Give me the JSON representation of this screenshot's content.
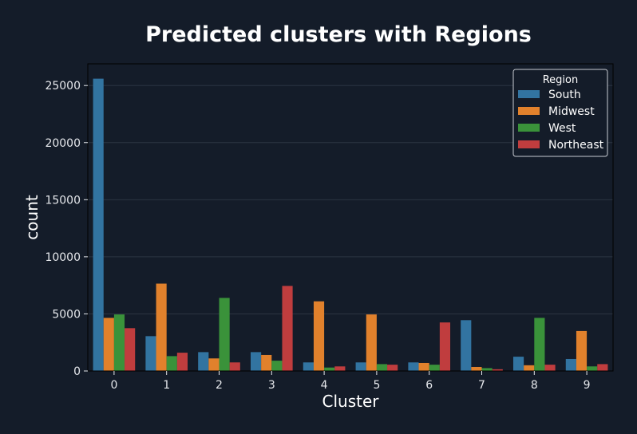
{
  "colors": {
    "background": "#141c29",
    "plot_background": "#141c29",
    "text": "#ffffff",
    "tick_text": "#e6e8ec",
    "grid": "#2b3442",
    "legend_bg": "#141c29",
    "legend_border": "#c8ccd2"
  },
  "chart_data": {
    "type": "bar",
    "title": "Predicted clusters with Regions",
    "xlabel": "Cluster",
    "ylabel": "count",
    "categories": [
      "0",
      "1",
      "2",
      "3",
      "4",
      "5",
      "6",
      "7",
      "8",
      "9"
    ],
    "ylim": [
      0,
      26900
    ],
    "yticks": [
      0,
      5000,
      10000,
      15000,
      20000,
      25000
    ],
    "grid": "horizontal",
    "legend": {
      "title": "Region",
      "placement": "top-right"
    },
    "series": [
      {
        "name": "South",
        "color": "#3274a1",
        "values": [
          25600,
          3050,
          1650,
          1650,
          750,
          750,
          750,
          4450,
          1250,
          1050
        ]
      },
      {
        "name": "Midwest",
        "color": "#e1812c",
        "values": [
          4650,
          7650,
          1100,
          1400,
          6100,
          4950,
          700,
          350,
          500,
          3500
        ]
      },
      {
        "name": "West",
        "color": "#3a923a",
        "values": [
          4950,
          1300,
          6400,
          900,
          300,
          600,
          550,
          250,
          4650,
          400
        ]
      },
      {
        "name": "Northeast",
        "color": "#c03d3e",
        "values": [
          3750,
          1600,
          750,
          7450,
          400,
          550,
          4250,
          150,
          550,
          600
        ]
      }
    ]
  }
}
